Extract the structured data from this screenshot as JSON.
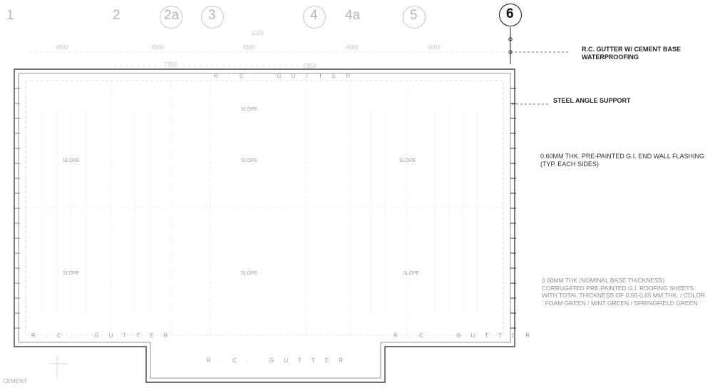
{
  "grid_lines": [
    {
      "id": "1",
      "label": "1",
      "bubble": false,
      "active": false
    },
    {
      "id": "2",
      "label": "2",
      "bubble": false,
      "active": false
    },
    {
      "id": "2a",
      "label": "2a",
      "bubble": true,
      "active": false
    },
    {
      "id": "3",
      "label": "3",
      "bubble": true,
      "active": false
    },
    {
      "id": "4",
      "label": "4",
      "bubble": true,
      "active": false
    },
    {
      "id": "4a",
      "label": "4a",
      "bubble": false,
      "active": false
    },
    {
      "id": "5",
      "label": "5",
      "bubble": true,
      "active": false
    },
    {
      "id": "6",
      "label": "6",
      "bubble": true,
      "active": true
    }
  ],
  "dimensions": {
    "spans": [
      "4500",
      "4500",
      "4500",
      "4500",
      "4500"
    ],
    "subtotals": [
      "7350",
      "7350"
    ],
    "small": "1025"
  },
  "callouts": {
    "gutter": "R.C. GUTTER W/ CEMENT BASE WATERPROOFING",
    "steel_angle": "STEEL ANGLE SUPPORT",
    "flashing": "0.60mm THK. PRE-PAINTED G.I. END WALL FLASHING (TYP. EACH SIDES)",
    "roofing": "0.60mm THK (NOMINAL BASE THICKNESS) CORRUGATED PRE-PAINTED G.I. ROOFING SHEETS WITH TOTAL THICKNESS OF 0.55-0.65 mm THK. / COLOR : FOAM GREEN / MINT GREEN / SPRINGFIELD GREEN"
  },
  "edge_labels": {
    "top": "R.C. GUTTER",
    "bottom_left": "R.C. GUTTER",
    "bottom_right": "R.C. GUTTER",
    "bottom_center": "R.C. GUTTER"
  },
  "plan_tags": [
    "SLOPE",
    "SLOPE",
    "SLOPE",
    "SLOPE",
    "SLOPE",
    "SLOPE",
    "SLOPE"
  ],
  "corner": {
    "label": "CEMENT"
  }
}
